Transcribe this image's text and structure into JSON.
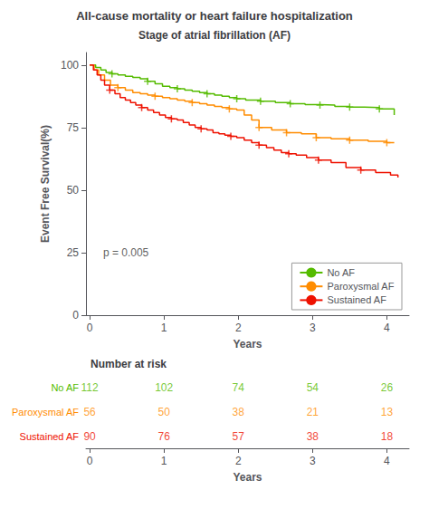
{
  "chart_data": [
    {
      "type": "step",
      "title": "All-cause mortality or heart failure hospitalization",
      "subtitle": "Stage of atrial fibrillation (AF)",
      "xlabel": "Years",
      "ylabel": "Event Free Survival(%)",
      "xlim": [
        -0.05,
        4.3
      ],
      "xticks": [
        0,
        1,
        2,
        3,
        4
      ],
      "ylim": [
        0,
        105
      ],
      "yticks": [
        0,
        25,
        50,
        75,
        100
      ],
      "grid": false,
      "legend": "lower right",
      "annotations": [
        {
          "text": "p = 0.005",
          "x": 0.18,
          "y": 25
        }
      ],
      "series": [
        {
          "name": "No AF",
          "color": "#55BB00",
          "marker": "+",
          "x": [
            0,
            0.08,
            0.15,
            0.22,
            0.3,
            0.38,
            0.48,
            0.58,
            0.68,
            0.78,
            0.88,
            0.98,
            1.08,
            1.18,
            1.28,
            1.38,
            1.48,
            1.58,
            1.68,
            1.78,
            1.88,
            1.98,
            2.1,
            2.3,
            2.5,
            2.7,
            2.9,
            3.1,
            3.3,
            3.5,
            3.7,
            3.9,
            4.1
          ],
          "values": [
            100,
            99,
            98,
            97,
            96.5,
            96,
            95.5,
            95,
            94.5,
            93.5,
            92.5,
            91.5,
            91,
            90.5,
            90,
            89.5,
            89,
            88.5,
            88,
            87.5,
            87,
            86.5,
            86,
            85.5,
            85,
            84.5,
            84.2,
            84,
            83.5,
            83.2,
            83,
            82.5,
            80
          ],
          "censor_x": [
            0.3,
            0.78,
            1.18,
            1.58,
            1.98,
            2.3,
            2.7,
            3.1,
            3.5,
            3.9
          ],
          "censor_y": [
            96.5,
            93.5,
            90.5,
            88.5,
            86.5,
            85.5,
            84.5,
            84,
            83.2,
            82.5
          ]
        },
        {
          "name": "Paroxysmal AF",
          "color": "#FF8C00",
          "marker": "+",
          "x": [
            0,
            0.06,
            0.12,
            0.2,
            0.28,
            0.38,
            0.48,
            0.58,
            0.68,
            0.78,
            0.88,
            0.98,
            1.08,
            1.18,
            1.28,
            1.38,
            1.48,
            1.58,
            1.68,
            1.78,
            1.88,
            1.98,
            2.08,
            2.18,
            2.28,
            2.45,
            2.65,
            2.85,
            3.05,
            3.25,
            3.5,
            3.75,
            4.0,
            4.1
          ],
          "values": [
            100,
            98,
            96,
            94,
            92,
            91,
            90,
            89,
            88.5,
            88,
            87.5,
            87,
            86.5,
            86,
            85.5,
            85,
            84.5,
            84,
            83.5,
            83,
            82.5,
            82,
            80,
            78,
            75,
            74,
            73,
            72.5,
            71,
            70.5,
            70,
            69.5,
            69,
            69
          ],
          "censor_x": [
            0.38,
            0.88,
            1.38,
            1.88,
            2.28,
            2.65,
            3.05,
            3.5,
            4.0
          ],
          "censor_y": [
            91,
            87.5,
            85,
            82.5,
            75,
            73,
            71,
            70,
            69
          ]
        },
        {
          "name": "Sustained AF",
          "color": "#EE1100",
          "marker": "+",
          "x": [
            0,
            0.05,
            0.1,
            0.15,
            0.2,
            0.27,
            0.34,
            0.41,
            0.48,
            0.55,
            0.62,
            0.7,
            0.78,
            0.86,
            0.94,
            1.02,
            1.1,
            1.18,
            1.26,
            1.34,
            1.42,
            1.5,
            1.58,
            1.66,
            1.74,
            1.82,
            1.9,
            1.98,
            2.08,
            2.18,
            2.28,
            2.38,
            2.48,
            2.58,
            2.68,
            2.78,
            2.92,
            3.08,
            3.25,
            3.45,
            3.65,
            3.85,
            4.05,
            4.15
          ],
          "values": [
            100,
            98,
            96,
            94,
            92,
            90,
            88.5,
            87,
            86,
            85,
            84,
            83,
            82,
            81,
            80,
            79,
            78.5,
            78,
            77,
            76,
            75,
            74.5,
            74,
            73,
            72.5,
            72,
            71.5,
            71,
            70,
            69,
            68,
            67,
            66,
            65,
            64.5,
            64,
            63,
            62,
            61,
            59,
            58,
            57,
            56,
            55
          ],
          "censor_x": [
            0.27,
            0.7,
            1.1,
            1.5,
            1.9,
            2.28,
            2.68,
            3.08,
            3.65
          ],
          "censor_y": [
            90,
            83,
            78.5,
            74.5,
            71.5,
            68,
            64.5,
            62,
            58
          ]
        }
      ]
    },
    {
      "type": "table",
      "title": "Number at risk",
      "xlabel": "Years",
      "x": [
        0,
        1,
        2,
        3,
        4
      ],
      "xlim": [
        -0.05,
        4.3
      ],
      "xticks": [
        0,
        1,
        2,
        3,
        4
      ],
      "series": [
        {
          "name": "No AF",
          "color": "#55BB00",
          "values": [
            112,
            102,
            74,
            54,
            26
          ]
        },
        {
          "name": "Paroxysmal AF",
          "color": "#FF8C00",
          "values": [
            56,
            50,
            38,
            21,
            13
          ]
        },
        {
          "name": "Sustained AF",
          "color": "#EE1100",
          "values": [
            90,
            76,
            57,
            38,
            18
          ]
        }
      ]
    }
  ]
}
